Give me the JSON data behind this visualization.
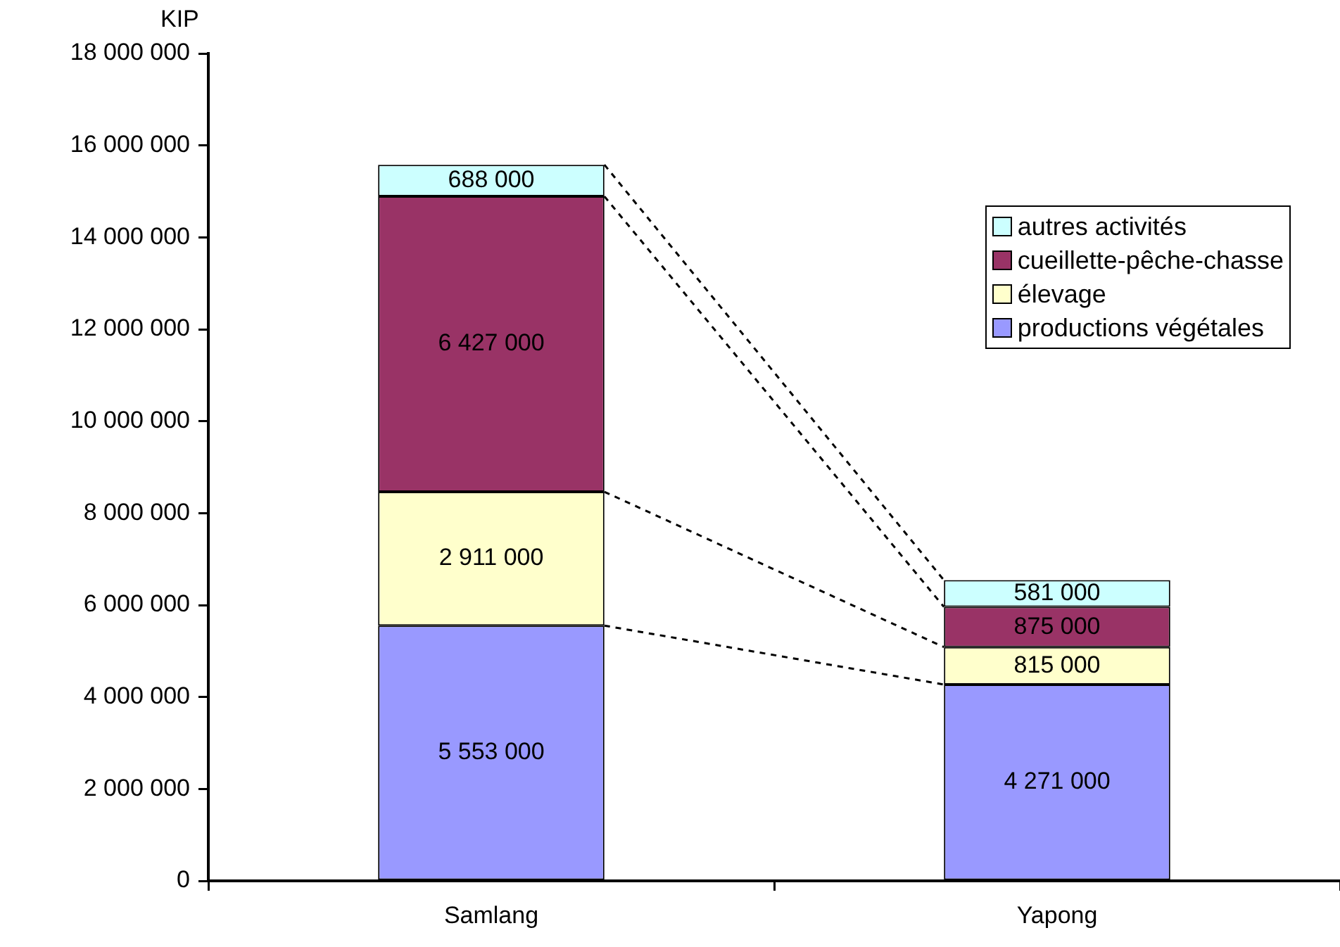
{
  "chart_data": {
    "type": "bar",
    "stacked": true,
    "ylabel": "KIP",
    "categories": [
      "Samlang",
      "Yapong"
    ],
    "series": [
      {
        "name": "productions végétales",
        "color": "#9999ff",
        "values": [
          5553000,
          4271000
        ],
        "value_labels": [
          "5 553 000",
          "4 271 000"
        ]
      },
      {
        "name": "élevage",
        "color": "#ffffcc",
        "values": [
          2911000,
          815000
        ],
        "value_labels": [
          "2 911 000",
          "815 000"
        ]
      },
      {
        "name": "cueillette-pêche-chasse",
        "color": "#993366",
        "values": [
          6427000,
          875000
        ],
        "value_labels": [
          "6 427 000",
          "875 000"
        ]
      },
      {
        "name": "autres activités",
        "color": "#ccffff",
        "values": [
          688000,
          581000
        ],
        "value_labels": [
          "688 000",
          "581 000"
        ]
      }
    ],
    "ylim": [
      0,
      18000000
    ],
    "yticks": [
      {
        "value": 0,
        "label": "0"
      },
      {
        "value": 2000000,
        "label": "2 000 000"
      },
      {
        "value": 4000000,
        "label": "4 000 000"
      },
      {
        "value": 6000000,
        "label": "6 000 000"
      },
      {
        "value": 8000000,
        "label": "8 000 000"
      },
      {
        "value": 10000000,
        "label": "10 000 000"
      },
      {
        "value": 12000000,
        "label": "12 000 000"
      },
      {
        "value": 14000000,
        "label": "14 000 000"
      },
      {
        "value": 16000000,
        "label": "16 000 000"
      },
      {
        "value": 18000000,
        "label": "18 000 000"
      }
    ],
    "grid": false,
    "legend": "top right"
  }
}
